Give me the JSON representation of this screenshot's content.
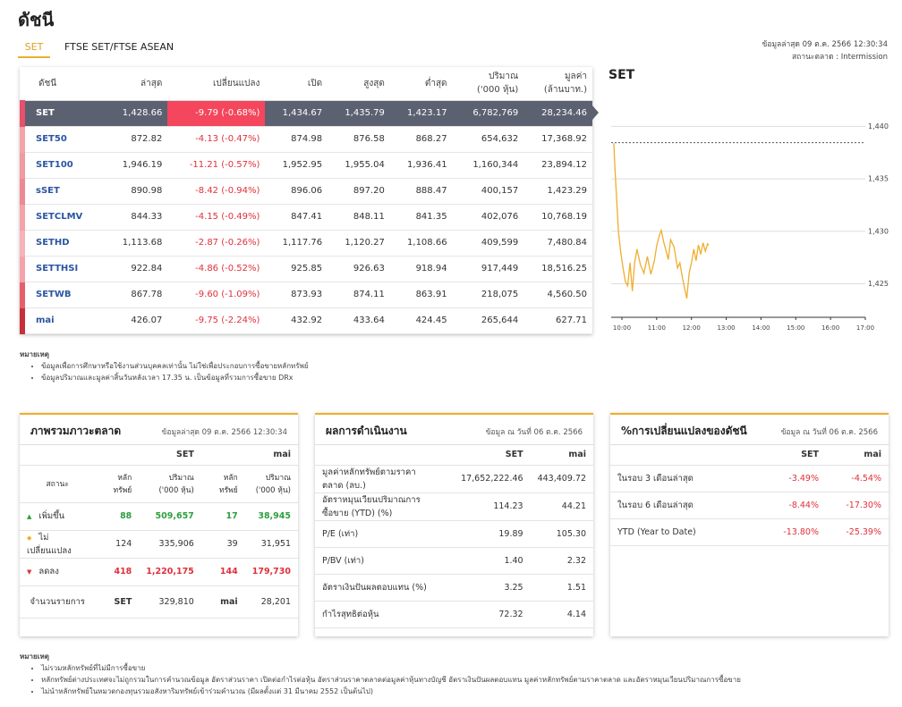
{
  "header": {
    "title": "ดัชนี",
    "tabs": [
      "SET",
      "FTSE SET/FTSE ASEAN"
    ],
    "updated": "ข้อมูลล่าสุด 09 ต.ค. 2566 12:30:34",
    "status": "สถานะตลาด : Intermission"
  },
  "index_table": {
    "columns": [
      "ดัชนี",
      "ล่าสุด",
      "เปลี่ยนแปลง",
      "เปิด",
      "สูงสุด",
      "ต่ำสุด",
      "ปริมาณ\n('000 หุ้น)",
      "มูลค่า\n(ล้านบาท.)"
    ],
    "rows": [
      {
        "color": "#e8506b",
        "cells": [
          "SET",
          "1,428.66",
          "-9.79 (-0.68%)",
          "1,434.67",
          "1,435.79",
          "1,423.17",
          "6,782,769",
          "28,234.46"
        ]
      },
      {
        "color": "#f4a3ab",
        "cells": [
          "SET50",
          "872.82",
          "-4.13 (-0.47%)",
          "874.98",
          "876.58",
          "868.27",
          "654,632",
          "17,368.92"
        ]
      },
      {
        "color": "#f19aa3",
        "cells": [
          "SET100",
          "1,946.19",
          "-11.21 (-0.57%)",
          "1,952.95",
          "1,955.04",
          "1,936.41",
          "1,160,344",
          "23,894.12"
        ]
      },
      {
        "color": "#ef8896",
        "cells": [
          "sSET",
          "890.98",
          "-8.42 (-0.94%)",
          "896.06",
          "897.20",
          "888.47",
          "400,157",
          "1,423.29"
        ]
      },
      {
        "color": "#f4a3ab",
        "cells": [
          "SETCLMV",
          "844.33",
          "-4.15 (-0.49%)",
          "847.41",
          "848.11",
          "841.35",
          "402,076",
          "10,768.19"
        ]
      },
      {
        "color": "#f6b3b9",
        "cells": [
          "SETHD",
          "1,113.68",
          "-2.87 (-0.26%)",
          "1,117.76",
          "1,120.27",
          "1,108.66",
          "409,599",
          "7,480.84"
        ]
      },
      {
        "color": "#f4a3ab",
        "cells": [
          "SETTHSI",
          "922.84",
          "-4.86 (-0.52%)",
          "925.85",
          "926.63",
          "918.94",
          "917,449",
          "18,516.25"
        ]
      },
      {
        "color": "#e5606d",
        "cells": [
          "SETWB",
          "867.78",
          "-9.60 (-1.09%)",
          "873.93",
          "874.11",
          "863.91",
          "218,075",
          "4,560.50"
        ]
      },
      {
        "color": "#c7303a",
        "cells": [
          "mai",
          "426.07",
          "-9.75 (-2.24%)",
          "432.92",
          "433.64",
          "424.45",
          "265,644",
          "627.71"
        ]
      }
    ]
  },
  "chart_data": {
    "type": "line",
    "title": "SET",
    "color": "#f0ad2e",
    "baseline": 1438.45,
    "x": [
      586,
      588,
      591,
      594,
      598,
      602,
      606,
      610,
      614,
      618,
      622,
      626,
      632,
      638,
      644,
      650,
      656,
      660,
      664,
      668,
      672,
      676,
      680,
      684,
      690,
      696,
      700,
      704,
      708,
      712,
      716,
      720,
      724,
      728,
      732,
      736,
      740,
      744,
      748,
      750
    ],
    "values": [
      1438.4,
      1436,
      1433,
      1430,
      1428,
      1426.5,
      1425.2,
      1424.8,
      1427,
      1424.3,
      1427,
      1428.3,
      1426.8,
      1426,
      1427.6,
      1425.9,
      1427.2,
      1428.6,
      1429.5,
      1430.1,
      1429,
      1428.2,
      1427.3,
      1429.2,
      1428.5,
      1426.5,
      1427,
      1425.7,
      1424.6,
      1423.6,
      1426,
      1427,
      1428.3,
      1427.2,
      1428.7,
      1427.8,
      1428.9,
      1428.1,
      1428.8,
      1428.66
    ],
    "xlim": [
      581.5,
      1020
    ],
    "ylim": [
      1421.8,
      1441.4
    ],
    "xticks": [
      {
        "value": 600,
        "label": "10:00"
      },
      {
        "value": 660,
        "label": "11:00"
      },
      {
        "value": 720,
        "label": "12:00"
      },
      {
        "value": 780,
        "label": "13:00"
      },
      {
        "value": 840,
        "label": "14:00"
      },
      {
        "value": 900,
        "label": "15:00"
      },
      {
        "value": 960,
        "label": "16:00"
      },
      {
        "value": 1020,
        "label": "17:00"
      }
    ],
    "yticks": [
      {
        "value": 1425,
        "label": "1,425"
      },
      {
        "value": 1430,
        "label": "1,430"
      },
      {
        "value": 1435,
        "label": "1,435"
      },
      {
        "value": 1440,
        "label": "1,440"
      }
    ],
    "grid": true
  },
  "notes1": {
    "title": "หมายเหตุ",
    "items": [
      "ข้อมูลเพื่อการศึกษาหรือใช้งานส่วนบุคคลเท่านั้น ไม่ใช่เพื่อประกอบการซื้อขายหลักทรัพย์",
      "ข้อมูลปริมาณและมูลค่าสิ้นวันหลังเวลา 17.35 น. เป็นข้อมูลที่รวมการซื้อขาย DRx"
    ]
  },
  "market": {
    "title": "ภาพรวมภาวะตลาด",
    "date": "ข้อมูลล่าสุด 09 ต.ค. 2566 12:30:34",
    "groups": [
      "SET",
      "mai"
    ],
    "subheaders": [
      "สถานะ",
      "หลักทรัพย์",
      "ปริมาณ\n('000 หุ้น)",
      "หลักทรัพย์",
      "ปริมาณ\n('000 หุ้น)"
    ],
    "rows": [
      {
        "label": "เพิ่มขึ้น",
        "color": "#2e9e3e",
        "values": [
          "88",
          "509,657",
          "17",
          "38,945"
        ]
      },
      {
        "label": "ไม่เปลี่ยนแปลง",
        "color": "#333333",
        "values": [
          "124",
          "335,906",
          "39",
          "31,951"
        ]
      },
      {
        "label": "ลดลง",
        "color": "#e0303a",
        "values": [
          "418",
          "1,220,175",
          "144",
          "179,730"
        ]
      }
    ],
    "total": [
      "จำนวนรายการ",
      "SET",
      "329,810",
      "mai",
      "28,201"
    ]
  },
  "performance": {
    "title": "ผลการดำเนินงาน",
    "date": "ข้อมูล ณ วันที่ 06 ต.ค. 2566",
    "columns": [
      "SET",
      "mai"
    ],
    "rows": [
      [
        "มูลค่าหลักทรัพย์ตามราคา\nตลาด (ลบ.)",
        "17,652,222.46",
        "443,409.72"
      ],
      [
        "อัตราหมุนเวียนปริมาณการ\nซื้อขาย (YTD) (%)",
        "114.23",
        "44.21"
      ],
      [
        "P/E (เท่า)",
        "19.89",
        "105.30"
      ],
      [
        "P/BV (เท่า)",
        "1.40",
        "2.32"
      ],
      [
        "อัตราเงินปันผลตอบแทน (%)",
        "3.25",
        "1.51"
      ],
      [
        "กำไรสุทธิต่อหุ้น",
        "72.32",
        "4.14"
      ]
    ]
  },
  "change": {
    "title": "%การเปลี่ยนแปลงของดัชนี",
    "date": "ข้อมูล ณ วันที่ 06 ต.ค. 2566",
    "columns": [
      "SET",
      "mai"
    ],
    "rows": [
      [
        "ในรอบ 3 เดือนล่าสุด",
        "-3.49%",
        "-4.54%"
      ],
      [
        "ในรอบ 6 เดือนล่าสุด",
        "-8.44%",
        "-17.30%"
      ],
      [
        "YTD (Year to Date)",
        "-13.80%",
        "-25.39%"
      ]
    ]
  },
  "notes2": {
    "title": "หมายเหตุ",
    "items": [
      "ไม่รวมหลักทรัพย์ที่ไม่มีการซื้อขาย",
      "หลักทรัพย์ต่างประเทศจะไม่ถูกรวมในการคำนวณข้อมูล อัตราส่วนราคา เปิดต่อกำไรต่อหุ้น อัตราส่วนราคาตลาดต่อมูลค่าหุ้นทางบัญชี อัตราเงินปันผลตอบแทน มูลค่าหลักทรัพย์ตามราคาตลาด และอัตราหมุนเวียนปริมาณการซื้อขาย",
      "ไม่นำหลักทรัพย์ในหมวดกองทุนรวมอสังหาริมทรัพย์เข้าร่วมคำนวณ (มีผลตั้งแต่ 31 มีนาคม 2552 เป็นต้นไป)"
    ]
  }
}
